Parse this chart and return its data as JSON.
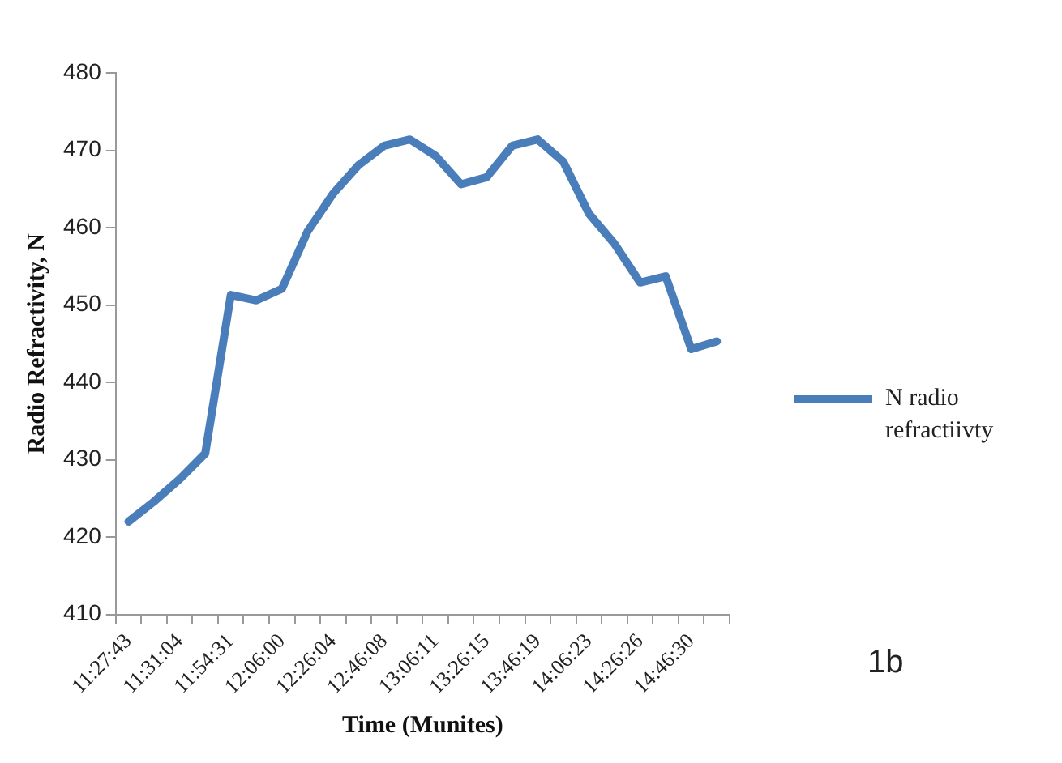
{
  "chart_data": {
    "type": "line",
    "xlabel": "Time (Munites)",
    "ylabel": "Radio Refractivity, N",
    "categories": [
      "11:27:43",
      null,
      "11:31:04",
      null,
      "11:54:31",
      null,
      "12:06:00",
      null,
      "12:26:04",
      null,
      "12:46:08",
      null,
      "13:06:11",
      null,
      "13:26:15",
      null,
      "13:46:19",
      null,
      "14:06:23",
      null,
      "14:26:26",
      null,
      "14:46:30",
      null
    ],
    "series": [
      {
        "name": "N radio refractiivty",
        "color": "#4a7ebb",
        "values": [
          422,
          424.6,
          427.5,
          430.8,
          451.3,
          450.6,
          452.1,
          459.5,
          464.4,
          468.1,
          470.6,
          471.4,
          469.3,
          465.6,
          466.5,
          470.6,
          471.4,
          468.5,
          461.8,
          457.9,
          452.9,
          453.7,
          444.3,
          445.3
        ]
      }
    ],
    "ylim": [
      410,
      480
    ],
    "yticks": [
      410,
      420,
      430,
      440,
      450,
      460,
      470,
      480
    ],
    "grid": false,
    "legend": "right",
    "marker": "none",
    "line_style": "solid",
    "annotations": [
      "1b"
    ]
  }
}
